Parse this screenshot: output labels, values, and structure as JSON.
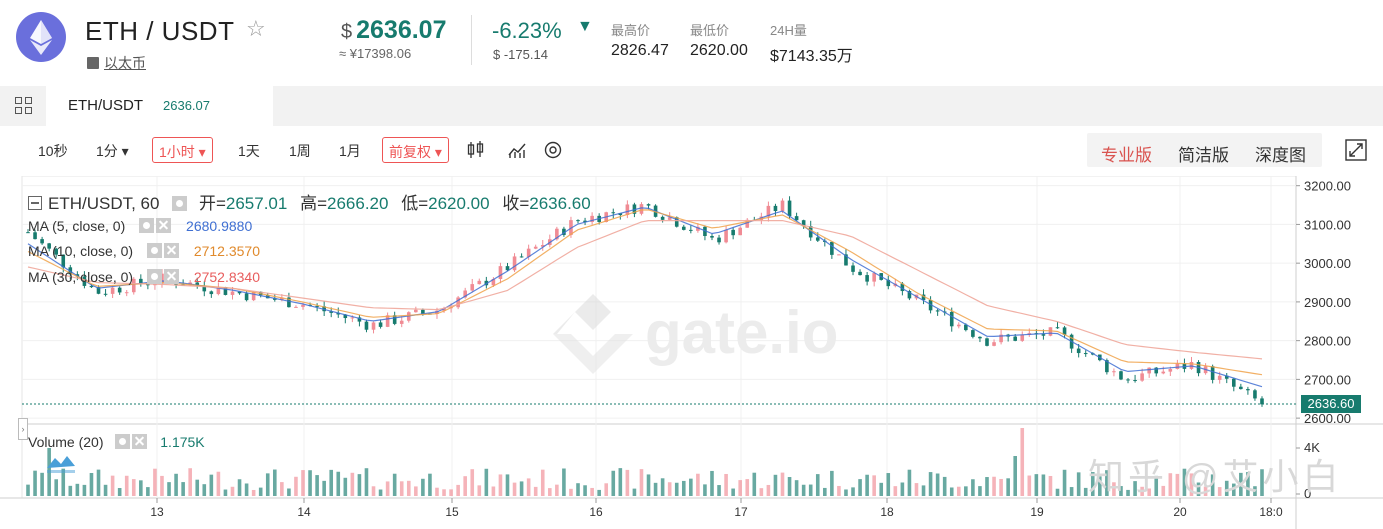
{
  "header": {
    "pair": "ETH / USDT",
    "sub_link": "以太币",
    "price_currency": "$",
    "price": "2636.07",
    "price_cny": "≈ ¥17398.06",
    "change_pct": "-6.23%",
    "change_abs": "$ -175.14",
    "stats": [
      {
        "label": "最高价",
        "value": "2826.47"
      },
      {
        "label": "最低价",
        "value": "2620.00"
      },
      {
        "label": "24H量",
        "value": "$7143.35万"
      }
    ],
    "colors": {
      "up": "#f08b94",
      "down": "#177b6e",
      "accent": "#d9534f"
    }
  },
  "tabstrip": {
    "tab_name": "ETH/USDT",
    "tab_price": "2636.07"
  },
  "toolbar": {
    "intervals": [
      "10秒",
      "1分 ▾",
      "1小时 ▾",
      "1天",
      "1周",
      "1月"
    ],
    "selected_interval": "1小时 ▾",
    "adjust": "前复权 ▾",
    "icons": [
      "candlestick-icon",
      "indicator-icon",
      "settings-icon"
    ],
    "views": [
      "专业版",
      "简洁版",
      "深度图"
    ],
    "active_view": "专业版"
  },
  "legend": {
    "symbol": "ETH/USDT, 60",
    "open_label": "开=",
    "open": "2657.01",
    "high_label": "高=",
    "high": "2666.20",
    "low_label": "低=",
    "low": "2620.00",
    "close_label": "收=",
    "close": "2636.60",
    "ma": [
      {
        "name": "MA (5, close, 0)",
        "value": "2680.9880",
        "color": "#3f6fd2"
      },
      {
        "name": "MA (10, close, 0)",
        "value": "2712.3570",
        "color": "#f0a24a"
      },
      {
        "name": "MA (30, close, 0)",
        "value": "2752.8340",
        "color": "#e85d5d"
      }
    ],
    "volume_label": "Volume (20)",
    "volume_value": "1.175K"
  },
  "price_axis": {
    "ticks": [
      "3200.00",
      "3100.00",
      "3000.00",
      "2900.00",
      "2800.00",
      "2700.00",
      "2600.00"
    ],
    "current_price": "2636.60"
  },
  "volume_axis": {
    "ticks": [
      "4K",
      "0"
    ]
  },
  "time_axis": {
    "ticks": [
      "13",
      "14",
      "15",
      "16",
      "17",
      "18",
      "19",
      "20",
      "18:0"
    ]
  },
  "watermarks": {
    "gate": "gate.io",
    "zhihu": "知乎 @艾小白"
  },
  "chart_data": {
    "type": "candlestick",
    "title": "ETH/USDT, 60",
    "xlabel": "",
    "ylabel": "",
    "ylim": [
      2590,
      3225
    ],
    "x": [
      "12",
      "12.5",
      "13",
      "13.5",
      "14",
      "14.5",
      "15",
      "15.5",
      "16",
      "16.5",
      "17",
      "17.5",
      "18",
      "18.5",
      "19",
      "19.5",
      "20",
      "20.4",
      "20.6"
    ],
    "series": [
      {
        "name": "Close",
        "values": [
          3080,
          2925,
          2960,
          2925,
          2895,
          2840,
          2880,
          2990,
          3110,
          3150,
          3060,
          3150,
          2990,
          2900,
          2800,
          2820,
          2700,
          2740,
          2636
        ]
      },
      {
        "name": "MA (5, close, 0)",
        "values": [
          3050,
          2935,
          2955,
          2930,
          2895,
          2850,
          2875,
          2980,
          3100,
          3145,
          3075,
          3135,
          3010,
          2910,
          2810,
          2820,
          2720,
          2735,
          2681
        ]
      },
      {
        "name": "MA (10, close, 0)",
        "values": [
          3030,
          2940,
          2950,
          2935,
          2900,
          2860,
          2870,
          2960,
          3085,
          3140,
          3090,
          3125,
          3030,
          2920,
          2830,
          2825,
          2745,
          2740,
          2712
        ]
      },
      {
        "name": "MA (30, close, 0)",
        "values": [
          2990,
          2950,
          2945,
          2935,
          2910,
          2885,
          2880,
          2930,
          3040,
          3110,
          3110,
          3110,
          3070,
          2980,
          2890,
          2850,
          2790,
          2770,
          2753
        ]
      }
    ],
    "grid": true
  }
}
